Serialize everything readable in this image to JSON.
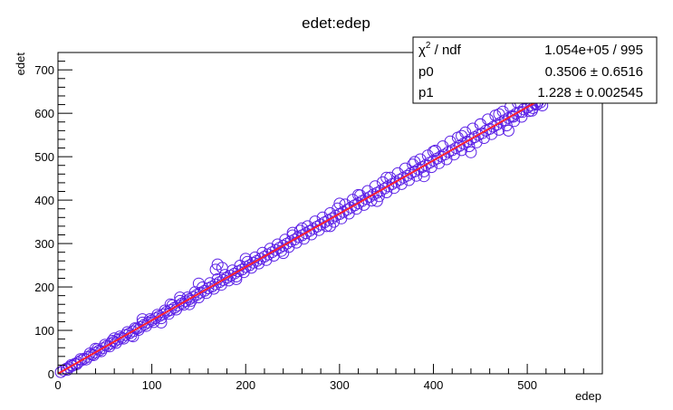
{
  "chart_data": {
    "type": "scatter",
    "title": "edet:edep",
    "xlabel": "edep",
    "ylabel": "edet",
    "xlim": [
      0,
      580
    ],
    "ylim": [
      0,
      740
    ],
    "x_ticks": [
      0,
      100,
      200,
      300,
      400,
      500
    ],
    "y_ticks": [
      0,
      100,
      200,
      300,
      400,
      500,
      600,
      700
    ],
    "grid": false,
    "marker": "open-circle",
    "marker_color": "#5a1fe6",
    "fit_color": "#ff2030",
    "points": [
      [
        3,
        4
      ],
      [
        6,
        8
      ],
      [
        9,
        12
      ],
      [
        12,
        15
      ],
      [
        15,
        18
      ],
      [
        18,
        23
      ],
      [
        21,
        26
      ],
      [
        25,
        31
      ],
      [
        28,
        35
      ],
      [
        32,
        39
      ],
      [
        36,
        44
      ],
      [
        40,
        49
      ],
      [
        44,
        54
      ],
      [
        48,
        59
      ],
      [
        52,
        64
      ],
      [
        56,
        69
      ],
      [
        60,
        74
      ],
      [
        64,
        79
      ],
      [
        68,
        83
      ],
      [
        72,
        89
      ],
      [
        76,
        93
      ],
      [
        80,
        98
      ],
      [
        84,
        104
      ],
      [
        88,
        108
      ],
      [
        92,
        113
      ],
      [
        96,
        118
      ],
      [
        100,
        123
      ],
      [
        104,
        128
      ],
      [
        108,
        133
      ],
      [
        112,
        137
      ],
      [
        116,
        143
      ],
      [
        120,
        147
      ],
      [
        124,
        152
      ],
      [
        128,
        157
      ],
      [
        132,
        162
      ],
      [
        136,
        167
      ],
      [
        140,
        172
      ],
      [
        144,
        177
      ],
      [
        148,
        182
      ],
      [
        152,
        187
      ],
      [
        156,
        191
      ],
      [
        160,
        197
      ],
      [
        164,
        201
      ],
      [
        168,
        206
      ],
      [
        172,
        211
      ],
      [
        176,
        216
      ],
      [
        180,
        221
      ],
      [
        184,
        226
      ],
      [
        188,
        231
      ],
      [
        192,
        236
      ],
      [
        196,
        240
      ],
      [
        200,
        246
      ],
      [
        204,
        250
      ],
      [
        208,
        256
      ],
      [
        212,
        260
      ],
      [
        216,
        265
      ],
      [
        220,
        270
      ],
      [
        224,
        275
      ],
      [
        228,
        280
      ],
      [
        232,
        285
      ],
      [
        236,
        290
      ],
      [
        240,
        295
      ],
      [
        244,
        300
      ],
      [
        248,
        305
      ],
      [
        252,
        309
      ],
      [
        256,
        315
      ],
      [
        260,
        319
      ],
      [
        264,
        324
      ],
      [
        268,
        329
      ],
      [
        272,
        334
      ],
      [
        276,
        339
      ],
      [
        280,
        344
      ],
      [
        284,
        349
      ],
      [
        288,
        354
      ],
      [
        292,
        358
      ],
      [
        296,
        364
      ],
      [
        300,
        368
      ],
      [
        304,
        373
      ],
      [
        308,
        378
      ],
      [
        312,
        383
      ],
      [
        316,
        388
      ],
      [
        320,
        393
      ],
      [
        324,
        398
      ],
      [
        328,
        403
      ],
      [
        332,
        407
      ],
      [
        336,
        413
      ],
      [
        340,
        417
      ],
      [
        344,
        422
      ],
      [
        348,
        427
      ],
      [
        352,
        432
      ],
      [
        356,
        437
      ],
      [
        360,
        442
      ],
      [
        364,
        447
      ],
      [
        368,
        452
      ],
      [
        372,
        456
      ],
      [
        376,
        462
      ],
      [
        380,
        466
      ],
      [
        384,
        471
      ],
      [
        388,
        476
      ],
      [
        392,
        481
      ],
      [
        396,
        486
      ],
      [
        400,
        491
      ],
      [
        404,
        496
      ],
      [
        408,
        501
      ],
      [
        412,
        505
      ],
      [
        416,
        511
      ],
      [
        420,
        515
      ],
      [
        424,
        520
      ],
      [
        428,
        525
      ],
      [
        432,
        530
      ],
      [
        436,
        535
      ],
      [
        440,
        540
      ],
      [
        444,
        545
      ],
      [
        448,
        550
      ],
      [
        452,
        554
      ],
      [
        456,
        560
      ],
      [
        460,
        564
      ],
      [
        464,
        569
      ],
      [
        468,
        574
      ],
      [
        472,
        579
      ],
      [
        476,
        584
      ],
      [
        480,
        589
      ],
      [
        484,
        594
      ],
      [
        488,
        599
      ],
      [
        492,
        603
      ],
      [
        496,
        609
      ],
      [
        500,
        613
      ],
      [
        504,
        618
      ],
      [
        508,
        622
      ],
      [
        512,
        628
      ],
      [
        10,
        9
      ],
      [
        14,
        20
      ],
      [
        20,
        22
      ],
      [
        24,
        34
      ],
      [
        30,
        33
      ],
      [
        34,
        47
      ],
      [
        38,
        43
      ],
      [
        42,
        57
      ],
      [
        46,
        52
      ],
      [
        50,
        67
      ],
      [
        55,
        63
      ],
      [
        58,
        76
      ],
      [
        62,
        71
      ],
      [
        66,
        86
      ],
      [
        70,
        81
      ],
      [
        74,
        96
      ],
      [
        78,
        88
      ],
      [
        82,
        105
      ],
      [
        86,
        101
      ],
      [
        90,
        118
      ],
      [
        94,
        110
      ],
      [
        98,
        126
      ],
      [
        102,
        119
      ],
      [
        106,
        136
      ],
      [
        110,
        128
      ],
      [
        114,
        146
      ],
      [
        118,
        138
      ],
      [
        122,
        158
      ],
      [
        126,
        148
      ],
      [
        130,
        168
      ],
      [
        134,
        159
      ],
      [
        138,
        176
      ],
      [
        142,
        168
      ],
      [
        146,
        188
      ],
      [
        150,
        176
      ],
      [
        154,
        199
      ],
      [
        158,
        186
      ],
      [
        162,
        209
      ],
      [
        166,
        196
      ],
      [
        170,
        218
      ],
      [
        174,
        205
      ],
      [
        178,
        228
      ],
      [
        182,
        215
      ],
      [
        186,
        238
      ],
      [
        190,
        224
      ],
      [
        194,
        249
      ],
      [
        198,
        234
      ],
      [
        202,
        258
      ],
      [
        206,
        244
      ],
      [
        210,
        268
      ],
      [
        214,
        254
      ],
      [
        218,
        279
      ],
      [
        222,
        262
      ],
      [
        226,
        288
      ],
      [
        230,
        272
      ],
      [
        234,
        298
      ],
      [
        238,
        283
      ],
      [
        242,
        309
      ],
      [
        246,
        292
      ],
      [
        250,
        319
      ],
      [
        254,
        302
      ],
      [
        258,
        330
      ],
      [
        262,
        311
      ],
      [
        266,
        340
      ],
      [
        270,
        321
      ],
      [
        274,
        351
      ],
      [
        278,
        331
      ],
      [
        282,
        360
      ],
      [
        286,
        340
      ],
      [
        290,
        370
      ],
      [
        294,
        350
      ],
      [
        298,
        381
      ],
      [
        302,
        358
      ],
      [
        306,
        390
      ],
      [
        310,
        369
      ],
      [
        314,
        401
      ],
      [
        318,
        380
      ],
      [
        322,
        411
      ],
      [
        326,
        389
      ],
      [
        330,
        421
      ],
      [
        334,
        399
      ],
      [
        338,
        432
      ],
      [
        342,
        409
      ],
      [
        346,
        441
      ],
      [
        350,
        418
      ],
      [
        354,
        452
      ],
      [
        358,
        428
      ],
      [
        362,
        462
      ],
      [
        366,
        437
      ],
      [
        370,
        473
      ],
      [
        374,
        446
      ],
      [
        378,
        482
      ],
      [
        382,
        456
      ],
      [
        386,
        494
      ],
      [
        390,
        466
      ],
      [
        394,
        503
      ],
      [
        398,
        476
      ],
      [
        402,
        514
      ],
      [
        406,
        485
      ],
      [
        410,
        524
      ],
      [
        414,
        494
      ],
      [
        418,
        535
      ],
      [
        422,
        505
      ],
      [
        426,
        544
      ],
      [
        430,
        515
      ],
      [
        434,
        556
      ],
      [
        438,
        524
      ],
      [
        442,
        565
      ],
      [
        446,
        533
      ],
      [
        450,
        575
      ],
      [
        454,
        543
      ],
      [
        458,
        586
      ],
      [
        462,
        552
      ],
      [
        466,
        595
      ],
      [
        470,
        562
      ],
      [
        474,
        604
      ],
      [
        478,
        572
      ],
      [
        482,
        615
      ],
      [
        486,
        582
      ],
      [
        490,
        624
      ],
      [
        494,
        592
      ],
      [
        498,
        634
      ],
      [
        502,
        605
      ],
      [
        506,
        612
      ],
      [
        510,
        620
      ],
      [
        514,
        625
      ],
      [
        516,
        618
      ],
      [
        505,
        606
      ],
      [
        495,
        603
      ],
      [
        485,
        592
      ],
      [
        170,
        252
      ],
      [
        175,
        244
      ],
      [
        168,
        240
      ],
      [
        130,
        176
      ],
      [
        90,
        126
      ],
      [
        200,
        265
      ],
      [
        250,
        325
      ],
      [
        300,
        392
      ],
      [
        350,
        452
      ],
      [
        400,
        512
      ],
      [
        450,
        575
      ],
      [
        150,
        208
      ],
      [
        120,
        160
      ],
      [
        60,
        82
      ],
      [
        40,
        58
      ],
      [
        260,
        335
      ],
      [
        320,
        412
      ],
      [
        380,
        488
      ],
      [
        430,
        548
      ],
      [
        470,
        598
      ],
      [
        110,
        118
      ],
      [
        140,
        160
      ],
      [
        190,
        218
      ],
      [
        240,
        278
      ],
      [
        290,
        340
      ],
      [
        340,
        398
      ],
      [
        390,
        455
      ],
      [
        440,
        510
      ],
      [
        480,
        560
      ],
      [
        80,
        86
      ]
    ],
    "fit": {
      "p0": 0.3506,
      "p1": 1.228,
      "x_range": [
        0,
        512
      ]
    },
    "stats": [
      {
        "name": "χ² / ndf",
        "value": "1.054e+05 / 995"
      },
      {
        "name": "p0",
        "value": "0.3506 ± 0.6516"
      },
      {
        "name": "p1",
        "value": "1.228 ± 0.002545"
      }
    ]
  }
}
